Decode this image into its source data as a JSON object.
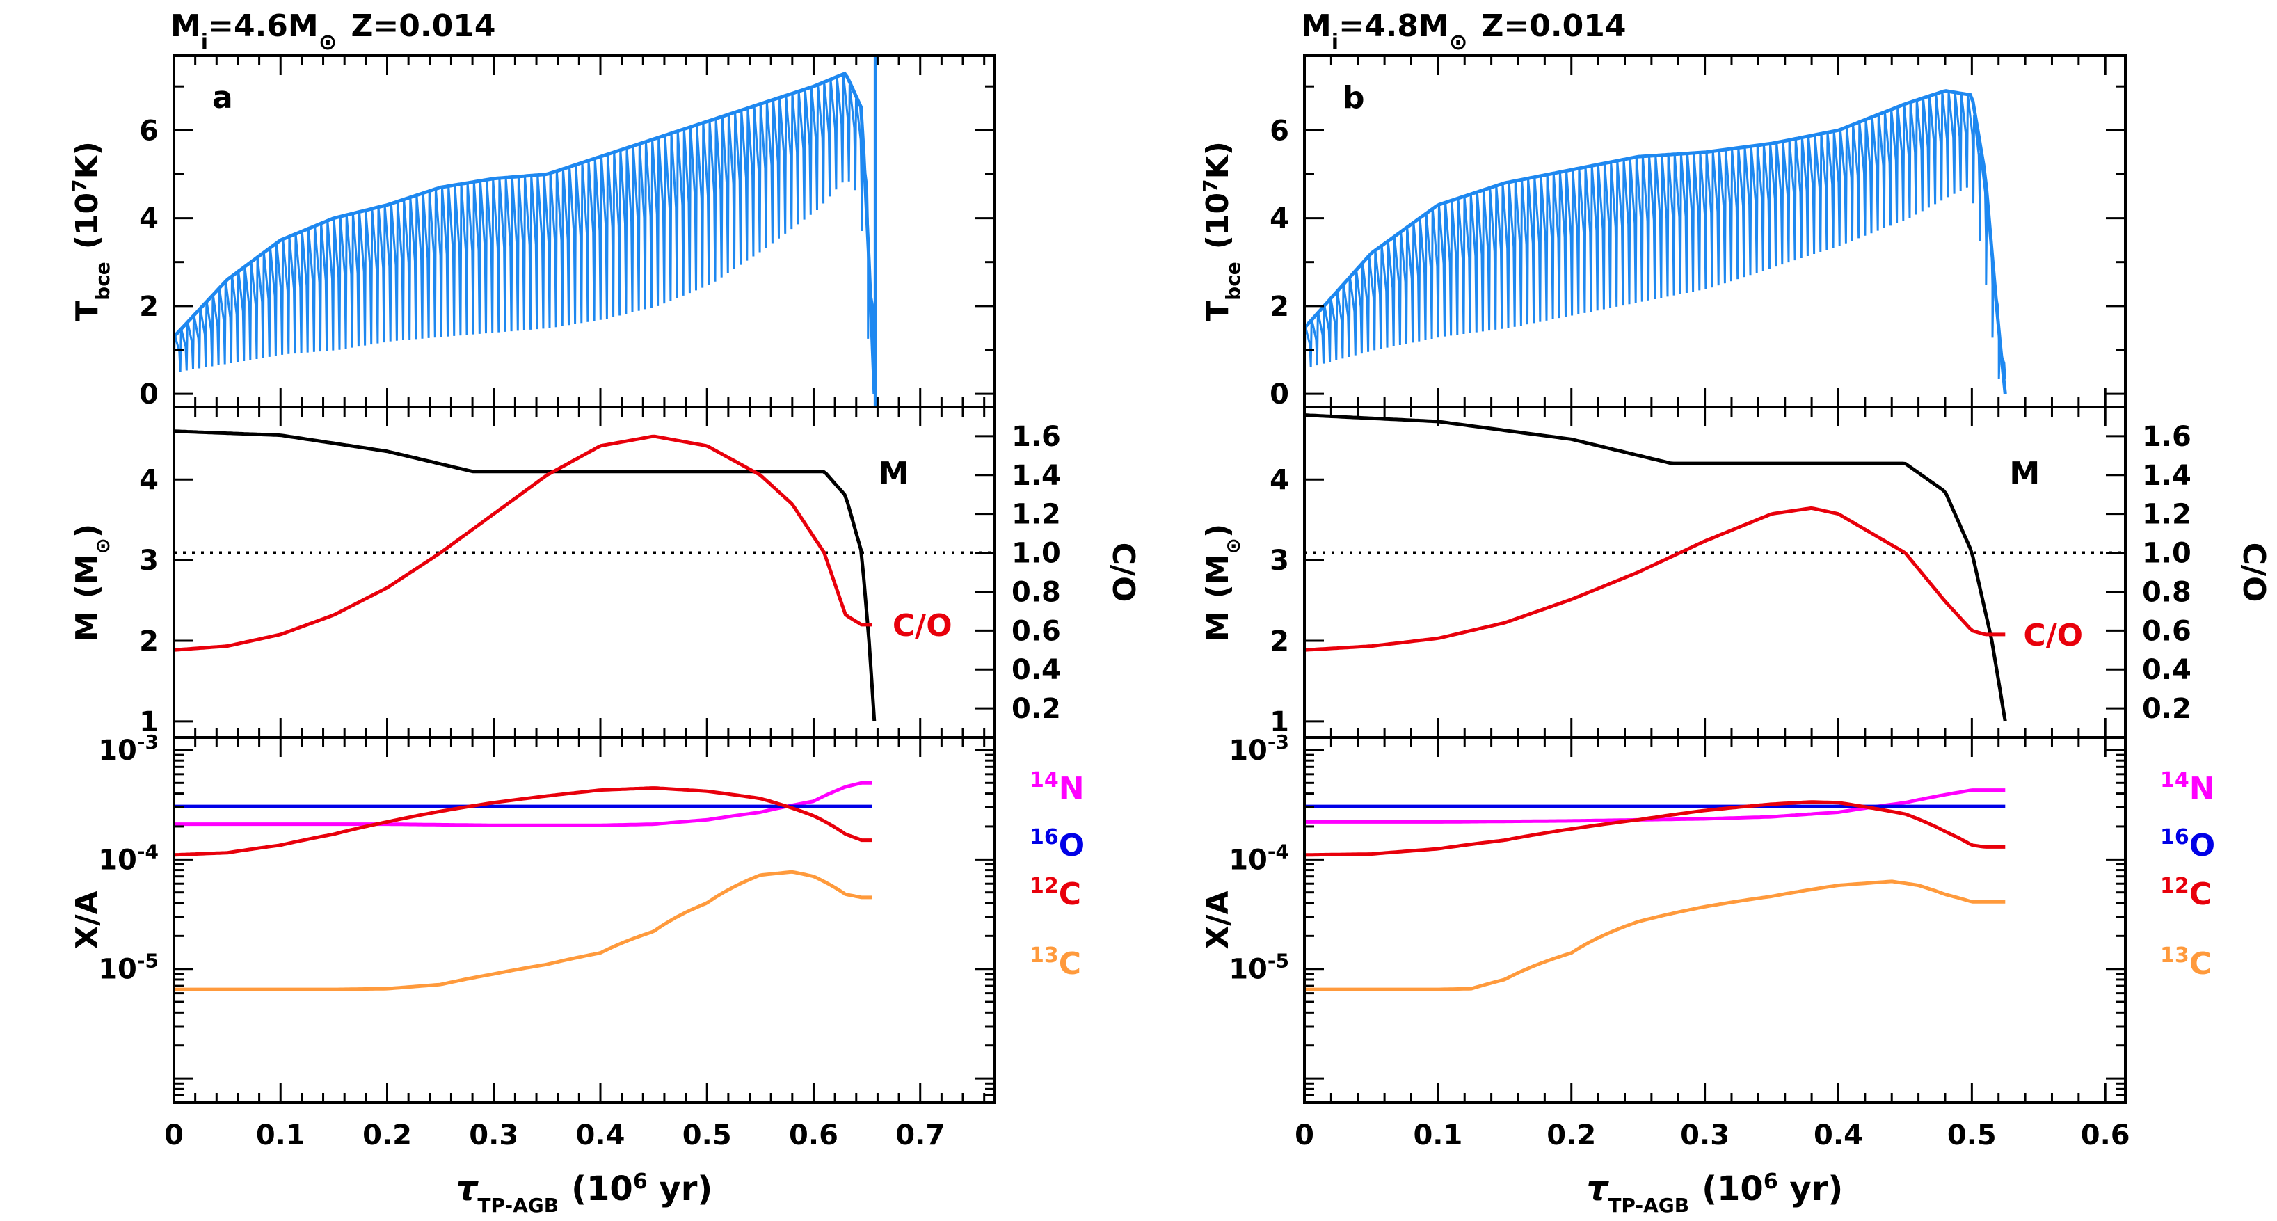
{
  "chart_data": [
    {
      "type": "line",
      "panel": "left",
      "title": {
        "prefix": "M",
        "sub": "i",
        "rest": "=4.6M",
        "sun": "⊙",
        "z": "Z=0.014"
      },
      "xlabel": {
        "tau": "τ",
        "sub": "TP-AGB",
        "rest": "(10",
        "sup": "6",
        "unit": " yr)"
      },
      "xlim": [
        0,
        0.77
      ],
      "xticks": [
        "0",
        "0.1",
        "0.2",
        "0.3",
        "0.4",
        "0.5",
        "0.6",
        "0.7"
      ],
      "top": {
        "letter": "a",
        "ylabel": {
          "base": "T",
          "sub": "bce",
          "open": "(10",
          "sup": "7",
          "unit": "K)"
        },
        "ylim": [
          -0.3,
          7.7
        ],
        "yticks": [
          "0",
          "2",
          "4",
          "6"
        ],
        "tbce_envelope": {
          "x": [
            0,
            0.05,
            0.1,
            0.15,
            0.2,
            0.25,
            0.3,
            0.35,
            0.4,
            0.45,
            0.5,
            0.55,
            0.6,
            0.63,
            0.645,
            0.652,
            0.657
          ],
          "upper": [
            1.3,
            2.6,
            3.5,
            4.0,
            4.3,
            4.7,
            4.9,
            5.0,
            5.4,
            5.8,
            6.2,
            6.6,
            7.0,
            7.3,
            6.5,
            3.0,
            0.0
          ],
          "lower": [
            0.5,
            0.7,
            0.9,
            1.0,
            1.2,
            1.3,
            1.4,
            1.5,
            1.7,
            2.0,
            2.5,
            3.3,
            4.2,
            5.0,
            4.5,
            1.5,
            0.0
          ]
        },
        "spike_x": 0.658,
        "color": "#1e88f0"
      },
      "middle": {
        "ylabel": {
          "base": "M",
          "open": "(M",
          "sun": "⊙",
          "close": ")"
        },
        "ylim_left": [
          0.8,
          4.9
        ],
        "yticks_left": [
          "1",
          "2",
          "3",
          "4"
        ],
        "ylabel_right": "C/O",
        "ylim_right": [
          0.05,
          1.75
        ],
        "yticks_right": [
          "0.2",
          "0.4",
          "0.6",
          "0.8",
          "1.0",
          "1.2",
          "1.4",
          "1.6"
        ],
        "mass": {
          "label": "M",
          "x": [
            0,
            0.1,
            0.2,
            0.28,
            0.61,
            0.63,
            0.645,
            0.652,
            0.657
          ],
          "y": [
            4.6,
            4.55,
            4.35,
            4.1,
            4.1,
            3.8,
            3.1,
            2.0,
            1.0
          ],
          "color": "#000000"
        },
        "c_over_o": {
          "label": "C/O",
          "x": [
            0,
            0.05,
            0.1,
            0.15,
            0.2,
            0.25,
            0.3,
            0.35,
            0.4,
            0.45,
            0.5,
            0.55,
            0.58,
            0.61,
            0.63,
            0.645,
            0.655
          ],
          "y": [
            0.5,
            0.52,
            0.58,
            0.68,
            0.82,
            1.0,
            1.2,
            1.4,
            1.55,
            1.6,
            1.55,
            1.4,
            1.25,
            1.0,
            0.68,
            0.63,
            0.63
          ],
          "color": "#e8000b"
        },
        "dotted_y": 1.0
      },
      "bottom": {
        "ylabel": "X/A",
        "ylog": true,
        "ylim": [
          6e-07,
          0.0013
        ],
        "yticks": [
          {
            "base": "10",
            "exp": "-3"
          },
          {
            "base": "10",
            "exp": "-4"
          },
          {
            "base": "10",
            "exp": "-5"
          }
        ],
        "series": [
          {
            "name": "14N",
            "mass": "14",
            "elem": "N",
            "color": "#ff00ff",
            "x": [
              0,
              0.1,
              0.2,
              0.3,
              0.4,
              0.45,
              0.5,
              0.55,
              0.6,
              0.63,
              0.645,
              0.655
            ],
            "y": [
              0.00021,
              0.00021,
              0.00021,
              0.000205,
              0.000205,
              0.00021,
              0.00023,
              0.00027,
              0.00034,
              0.00046,
              0.0005,
              0.0005
            ]
          },
          {
            "name": "16O",
            "mass": "16",
            "elem": "O",
            "color": "#0000e6",
            "x": [
              0,
              0.655
            ],
            "y": [
              0.000305,
              0.000305
            ]
          },
          {
            "name": "12C",
            "mass": "12",
            "elem": "C",
            "color": "#e8000b",
            "x": [
              0,
              0.05,
              0.1,
              0.15,
              0.2,
              0.25,
              0.3,
              0.35,
              0.4,
              0.45,
              0.5,
              0.55,
              0.6,
              0.63,
              0.645,
              0.655
            ],
            "y": [
              0.00011,
              0.000115,
              0.000135,
              0.00017,
              0.00022,
              0.000275,
              0.00033,
              0.00038,
              0.00043,
              0.00045,
              0.00042,
              0.00036,
              0.00025,
              0.00017,
              0.00015,
              0.00015
            ]
          },
          {
            "name": "13C",
            "mass": "13",
            "elem": "C",
            "color": "#ff9a3c",
            "x": [
              0,
              0.1,
              0.15,
              0.2,
              0.25,
              0.3,
              0.35,
              0.4,
              0.45,
              0.5,
              0.55,
              0.58,
              0.6,
              0.63,
              0.645,
              0.655
            ],
            "y": [
              6.5e-06,
              6.5e-06,
              6.5e-06,
              6.6e-06,
              7.2e-06,
              9e-06,
              1.1e-05,
              1.4e-05,
              2.2e-05,
              4e-05,
              7.2e-05,
              7.7e-05,
              7e-05,
              4.8e-05,
              4.5e-05,
              4.5e-05
            ]
          }
        ]
      }
    },
    {
      "type": "line",
      "panel": "right",
      "title": {
        "prefix": "M",
        "sub": "i",
        "rest": "=4.8M",
        "sun": "⊙",
        "z": "Z=0.014"
      },
      "xlabel": {
        "tau": "τ",
        "sub": "TP-AGB",
        "rest": "(10",
        "sup": "6",
        "unit": " yr)"
      },
      "xlim": [
        0,
        0.615
      ],
      "xticks": [
        "0",
        "0.1",
        "0.2",
        "0.3",
        "0.4",
        "0.5",
        "0.6"
      ],
      "top": {
        "letter": "b",
        "ylabel": {
          "base": "T",
          "sub": "bce",
          "open": "(10",
          "sup": "7",
          "unit": "K)"
        },
        "ylim": [
          -0.3,
          7.7
        ],
        "yticks": [
          "0",
          "2",
          "4",
          "6"
        ],
        "tbce_envelope": {
          "x": [
            0,
            0.05,
            0.1,
            0.15,
            0.2,
            0.25,
            0.3,
            0.35,
            0.4,
            0.45,
            0.48,
            0.5,
            0.51,
            0.52,
            0.525
          ],
          "upper": [
            1.5,
            3.2,
            4.3,
            4.8,
            5.1,
            5.4,
            5.5,
            5.7,
            6.0,
            6.6,
            6.9,
            6.8,
            5.0,
            1.5,
            0.0
          ],
          "lower": [
            0.6,
            1.0,
            1.3,
            1.5,
            1.8,
            2.1,
            2.4,
            2.9,
            3.4,
            4.0,
            4.5,
            4.8,
            3.0,
            0.5,
            0.0
          ]
        },
        "spike_x": null,
        "color": "#1e88f0"
      },
      "middle": {
        "ylabel": {
          "base": "M",
          "open": "(M",
          "sun": "⊙",
          "close": ")"
        },
        "ylim_left": [
          0.8,
          4.9
        ],
        "yticks_left": [
          "1",
          "2",
          "3",
          "4"
        ],
        "ylabel_right": "C/O",
        "ylim_right": [
          0.05,
          1.75
        ],
        "yticks_right": [
          "0.2",
          "0.4",
          "0.6",
          "0.8",
          "1.0",
          "1.2",
          "1.4",
          "1.6"
        ],
        "mass": {
          "label": "M",
          "x": [
            0,
            0.1,
            0.2,
            0.275,
            0.45,
            0.48,
            0.5,
            0.515,
            0.525
          ],
          "y": [
            4.8,
            4.72,
            4.5,
            4.2,
            4.2,
            3.85,
            3.1,
            2.0,
            1.0
          ],
          "color": "#000000"
        },
        "c_over_o": {
          "label": "C/O",
          "x": [
            0,
            0.05,
            0.1,
            0.15,
            0.2,
            0.25,
            0.3,
            0.35,
            0.38,
            0.4,
            0.45,
            0.48,
            0.5,
            0.51,
            0.525
          ],
          "y": [
            0.5,
            0.52,
            0.56,
            0.64,
            0.76,
            0.9,
            1.06,
            1.2,
            1.23,
            1.2,
            1.0,
            0.75,
            0.6,
            0.58,
            0.58
          ],
          "color": "#e8000b"
        },
        "dotted_y": 1.0
      },
      "bottom": {
        "ylabel": "X/A",
        "ylog": true,
        "ylim": [
          6e-07,
          0.0013
        ],
        "yticks": [
          {
            "base": "10",
            "exp": "-3"
          },
          {
            "base": "10",
            "exp": "-4"
          },
          {
            "base": "10",
            "exp": "-5"
          }
        ],
        "series": [
          {
            "name": "14N",
            "mass": "14",
            "elem": "N",
            "color": "#ff00ff",
            "x": [
              0,
              0.1,
              0.2,
              0.3,
              0.35,
              0.4,
              0.45,
              0.48,
              0.5,
              0.525
            ],
            "y": [
              0.00022,
              0.00022,
              0.000225,
              0.000235,
              0.000245,
              0.00027,
              0.00033,
              0.00039,
              0.00043,
              0.00043
            ]
          },
          {
            "name": "16O",
            "mass": "16",
            "elem": "O",
            "color": "#0000e6",
            "x": [
              0,
              0.525
            ],
            "y": [
              0.000305,
              0.000305
            ]
          },
          {
            "name": "12C",
            "mass": "12",
            "elem": "C",
            "color": "#e8000b",
            "x": [
              0,
              0.05,
              0.1,
              0.15,
              0.2,
              0.25,
              0.3,
              0.35,
              0.38,
              0.4,
              0.45,
              0.48,
              0.5,
              0.51,
              0.525
            ],
            "y": [
              0.00011,
              0.000112,
              0.000125,
              0.00015,
              0.00019,
              0.00023,
              0.00028,
              0.00032,
              0.000335,
              0.00033,
              0.00026,
              0.00018,
              0.000135,
              0.00013,
              0.00013
            ]
          },
          {
            "name": "13C",
            "mass": "13",
            "elem": "C",
            "color": "#ff9a3c",
            "x": [
              0,
              0.1,
              0.125,
              0.15,
              0.2,
              0.25,
              0.3,
              0.35,
              0.4,
              0.44,
              0.46,
              0.48,
              0.5,
              0.525
            ],
            "y": [
              6.5e-06,
              6.5e-06,
              6.6e-06,
              8e-06,
              1.4e-05,
              2.7e-05,
              3.7e-05,
              4.6e-05,
              5.8e-05,
              6.3e-05,
              5.8e-05,
              4.8e-05,
              4.1e-05,
              4.1e-05
            ]
          }
        ]
      }
    }
  ]
}
